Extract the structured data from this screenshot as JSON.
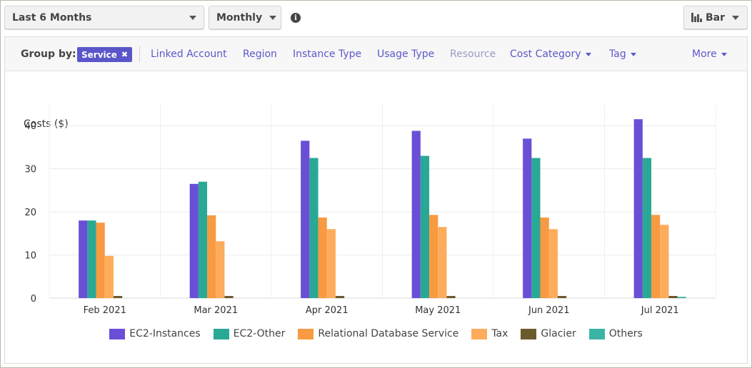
{
  "toolbar": {
    "range_label": "Last 6 Months",
    "period_label": "Monthly",
    "chart_type_label": "Bar",
    "info_icon": "i"
  },
  "group_by": {
    "label": "Group by:",
    "selected": "Service",
    "remove_glyph": "✖",
    "options": [
      {
        "label": "Linked Account",
        "disabled": false,
        "dropdown": false
      },
      {
        "label": "Region",
        "disabled": false,
        "dropdown": false
      },
      {
        "label": "Instance Type",
        "disabled": false,
        "dropdown": false
      },
      {
        "label": "Usage Type",
        "disabled": false,
        "dropdown": false
      },
      {
        "label": "Resource",
        "disabled": true,
        "dropdown": false
      },
      {
        "label": "Cost Category",
        "disabled": false,
        "dropdown": true
      },
      {
        "label": "Tag",
        "disabled": false,
        "dropdown": true
      },
      {
        "label": "More",
        "disabled": false,
        "dropdown": true
      }
    ]
  },
  "chart_data": {
    "type": "bar",
    "ylabel": "Costs ($)",
    "ylim": [
      0,
      45
    ],
    "yticks": [
      0,
      10,
      20,
      30,
      40
    ],
    "grid": true,
    "legend_position": "bottom",
    "categories": [
      "Feb 2021",
      "Mar 2021",
      "Apr 2021",
      "May 2021",
      "Jun 2021",
      "Jul 2021"
    ],
    "series": [
      {
        "name": "EC2-Instances",
        "color": "#6a4fd6",
        "values": [
          18.0,
          26.5,
          36.5,
          38.8,
          37.0,
          41.5
        ]
      },
      {
        "name": "EC2-Other",
        "color": "#2aa896",
        "values": [
          18.0,
          27.0,
          32.5,
          33.0,
          32.5,
          32.5
        ]
      },
      {
        "name": "Relational Database Service",
        "color": "#f79a41",
        "values": [
          17.5,
          19.2,
          18.7,
          19.3,
          18.7,
          19.3
        ]
      },
      {
        "name": "Tax",
        "color": "#fdac5b",
        "values": [
          9.8,
          13.2,
          16.0,
          16.5,
          16.0,
          17.0
        ]
      },
      {
        "name": "Glacier",
        "color": "#6b5a2e",
        "values": [
          0.5,
          0.5,
          0.5,
          0.5,
          0.5,
          0.5
        ]
      },
      {
        "name": "Others",
        "color": "#3ab5a5",
        "values": [
          0,
          0,
          0,
          0,
          0,
          0.3
        ]
      }
    ]
  }
}
